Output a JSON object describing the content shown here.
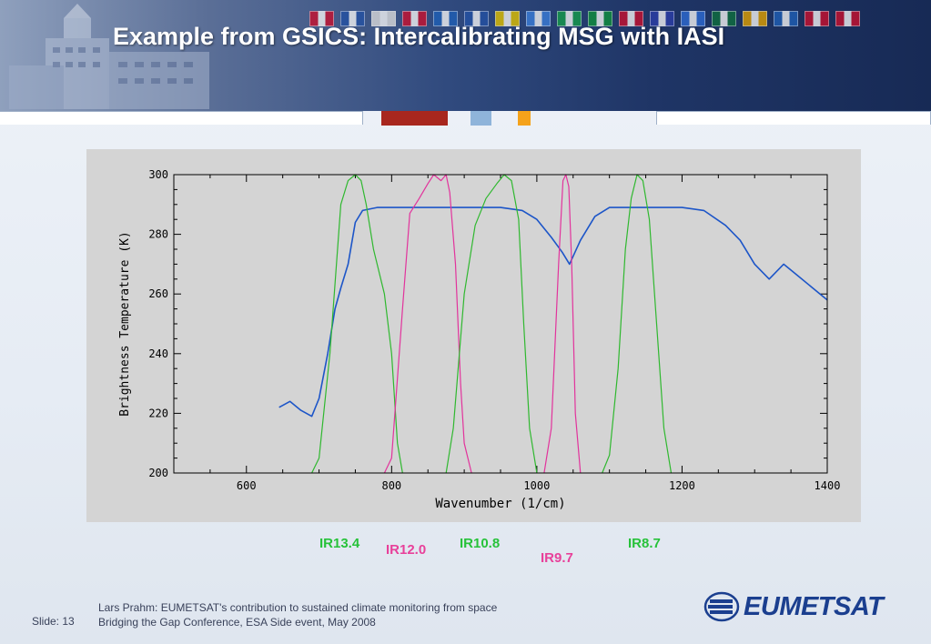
{
  "slide": {
    "title": "Example from GSICS: Intercalibrating MSG with IASI",
    "footer_line1": "Lars Prahm: EUMETSAT's contribution to sustained climate monitoring from space",
    "footer_line2": "Bridging the Gap Conference, ESA Side event, May 2008",
    "slide_label": "Slide: 13",
    "logo_text": "EUMETSAT",
    "flag_count": 18
  },
  "colors": {
    "iasi_spectrum": "#1c55c8",
    "green_bands": "#2fb82f",
    "pink_bands": "#e2339c",
    "green_label": "#27c23a",
    "pink_label": "#e8409a"
  },
  "chart_data": {
    "type": "line",
    "title": "",
    "xlabel": "Wavenumber (1/cm)",
    "ylabel": "Brightness Temperature (K)",
    "xlim": [
      500,
      1400
    ],
    "ylim": [
      200,
      300
    ],
    "x_ticks": [
      600,
      800,
      1000,
      1200,
      1400
    ],
    "y_ticks": [
      200,
      220,
      240,
      260,
      280,
      300
    ],
    "grid": false,
    "series": [
      {
        "color": "#1c55c8",
        "x": [
          645,
          660,
          675,
          690,
          700,
          712,
          722,
          730,
          740,
          750,
          760,
          780,
          800,
          830,
          860,
          890,
          920,
          950,
          980,
          1000,
          1020,
          1035,
          1045,
          1060,
          1080,
          1100,
          1130,
          1160,
          1200,
          1230,
          1260,
          1280,
          1300,
          1320,
          1340,
          1360,
          1380,
          1395,
          1400
        ],
        "y": [
          222,
          224,
          221,
          219,
          225,
          240,
          255,
          262,
          270,
          284,
          288,
          289,
          289,
          289,
          289,
          289,
          289,
          289,
          288,
          285,
          279,
          274,
          270,
          278,
          286,
          289,
          289,
          289,
          289,
          288,
          283,
          278,
          270,
          265,
          270,
          266,
          262,
          259,
          258
        ]
      },
      {
        "name": "IR13.4",
        "color": "#2fb82f",
        "x": [
          690,
          700,
          715,
          730,
          740,
          750,
          758,
          765,
          775,
          790,
          800,
          808,
          815
        ],
        "y": [
          200,
          205,
          240,
          290,
          298,
          300,
          298,
          290,
          275,
          260,
          240,
          210,
          200
        ]
      },
      {
        "name": "IR12.0",
        "color": "#e2339c",
        "x": [
          790,
          800,
          815,
          825,
          838,
          850,
          858,
          868,
          875,
          880,
          888,
          895,
          900,
          910
        ],
        "y": [
          200,
          205,
          255,
          287,
          292,
          297,
          300,
          298,
          300,
          294,
          270,
          230,
          210,
          200
        ]
      },
      {
        "name": "IR10.8",
        "color": "#2fb82f",
        "x": [
          875,
          885,
          900,
          915,
          930,
          945,
          955,
          965,
          975,
          982,
          990,
          1000
        ],
        "y": [
          200,
          215,
          260,
          283,
          292,
          297,
          300,
          298,
          285,
          250,
          215,
          200
        ]
      },
      {
        "name": "IR9.7",
        "color": "#e2339c",
        "x": [
          1010,
          1020,
          1030,
          1036,
          1040,
          1044,
          1048,
          1053,
          1060
        ],
        "y": [
          200,
          215,
          270,
          298,
          300,
          296,
          270,
          220,
          200
        ]
      },
      {
        "name": "IR8.7",
        "color": "#2fb82f",
        "x": [
          1090,
          1100,
          1112,
          1122,
          1130,
          1138,
          1146,
          1155,
          1165,
          1175,
          1185
        ],
        "y": [
          200,
          206,
          235,
          275,
          292,
          300,
          298,
          285,
          250,
          215,
          200
        ]
      }
    ],
    "band_labels": [
      {
        "name": "IR13.4",
        "group": "green"
      },
      {
        "name": "IR12.0",
        "group": "pink"
      },
      {
        "name": "IR10.8",
        "group": "green"
      },
      {
        "name": "IR9.7",
        "group": "pink"
      },
      {
        "name": "IR8.7",
        "group": "green"
      }
    ]
  }
}
